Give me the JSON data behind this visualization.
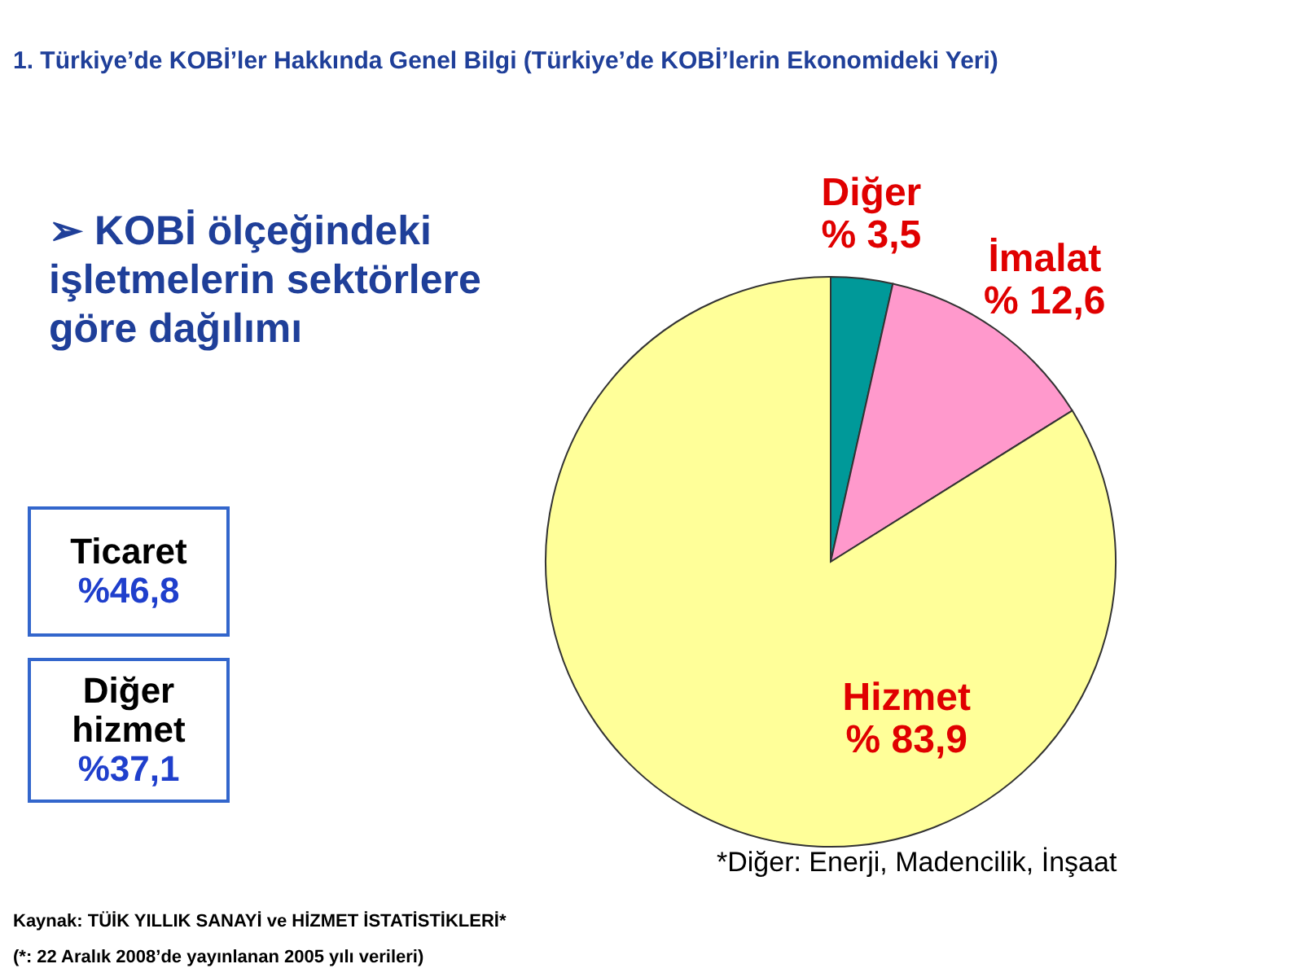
{
  "chart_data": {
    "type": "pie",
    "title": "1. Türkiye’de KOBİ’ler Hakkında Genel Bilgi (Türkiye’de KOBİ’lerin Ekonomideki Yeri)",
    "subtitle": "➢ KOBİ ölçeğindeki\nişletmelerin sektörlere\ngöre dağılımı",
    "categories": [
      "Diğer",
      "İmalat",
      "Hizmet"
    ],
    "values": [
      3.5,
      12.6,
      83.9
    ],
    "colors": [
      "#009999",
      "#ff99cc",
      "#ffff99"
    ],
    "value_labels": [
      "% 3,5",
      "% 12,6",
      "% 83,9"
    ],
    "legend": false,
    "annotations": [
      "Ticaret\n%46,8",
      "Diğer\nhizmet\n%37,1",
      "*Diğer: Enerji, Madencilik, İnşaat",
      "Kaynak: TÜİK YILLIK SANAYİ ve HİZMET İSTATİSTİKLERİ*",
      "(*: 22 Aralık 2008’de yayınlanan 2005 yılı verileri)"
    ]
  }
}
